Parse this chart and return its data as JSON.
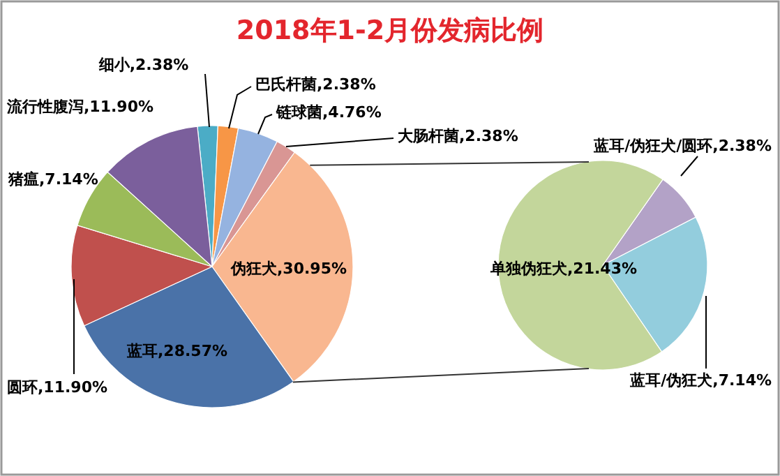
{
  "chart_data": [
    {
      "type": "pie",
      "title": "2018年1-2月份发病比例",
      "categories": [
        "细小",
        "巴氏杆菌",
        "链球菌",
        "大肠杆菌",
        "伪狂犬",
        "蓝耳",
        "圆环",
        "猪瘟",
        "流行性腹泻"
      ],
      "values": [
        2.38,
        2.38,
        4.76,
        2.38,
        30.95,
        28.57,
        11.9,
        7.14,
        11.9
      ],
      "value_labels": [
        "2.38%",
        "2.38%",
        "4.76%",
        "2.38%",
        "30.95%",
        "28.57%",
        "11.90%",
        "7.14%",
        "11.90%"
      ],
      "colors": [
        "#4bacc6",
        "#f79646",
        "#95b3e0",
        "#d99694",
        "#f9b790",
        "#4a72a8",
        "#c0504d",
        "#9bbb59",
        "#7b5f9c"
      ]
    },
    {
      "type": "pie",
      "categories": [
        "蓝耳/伪狂犬/圆环",
        "蓝耳/伪狂犬",
        "单独伪狂犬"
      ],
      "values": [
        2.38,
        7.14,
        21.43
      ],
      "value_labels": [
        "2.38%",
        "7.14%",
        "21.43%"
      ],
      "colors": [
        "#b3a2c7",
        "#93cddd",
        "#c3d69b"
      ]
    }
  ]
}
